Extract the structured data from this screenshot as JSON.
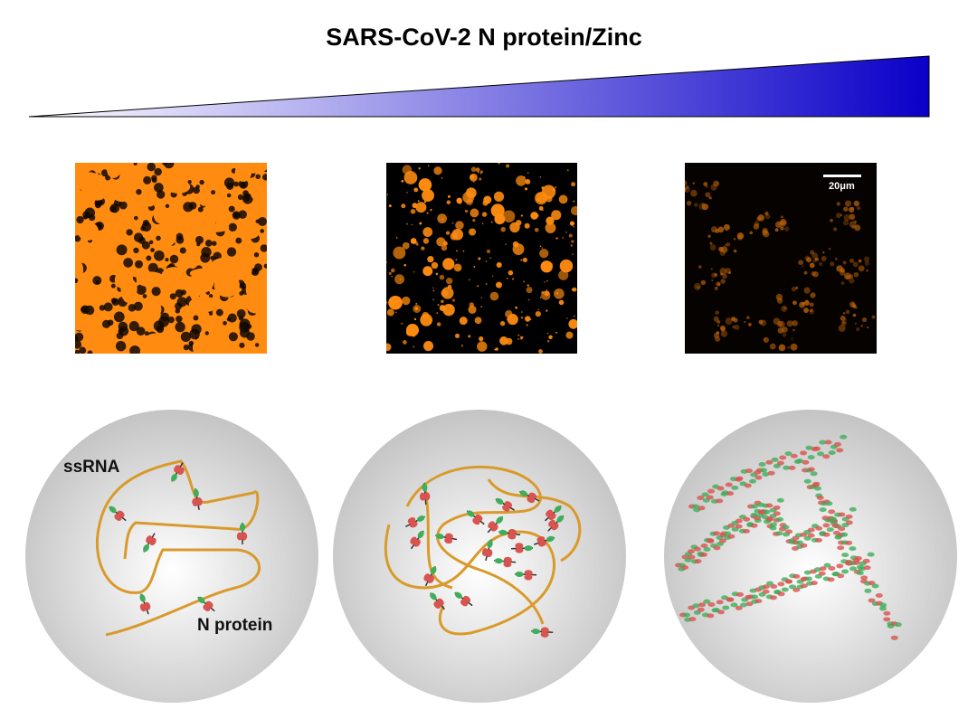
{
  "title": "SARS-CoV-2 N protein/Zinc",
  "gradient": {
    "start_color": "#ffffff",
    "end_color": "#0a00c8"
  },
  "micrographs": {
    "scale_bar_label": "20μm",
    "fluorescence_color": "#ff8c10"
  },
  "models": {
    "rna_label": "ssRNA",
    "protein_label": "N protein",
    "rna_color": "#d99a2b",
    "protein_colors": [
      "#3fae5a",
      "#d9534f"
    ]
  }
}
